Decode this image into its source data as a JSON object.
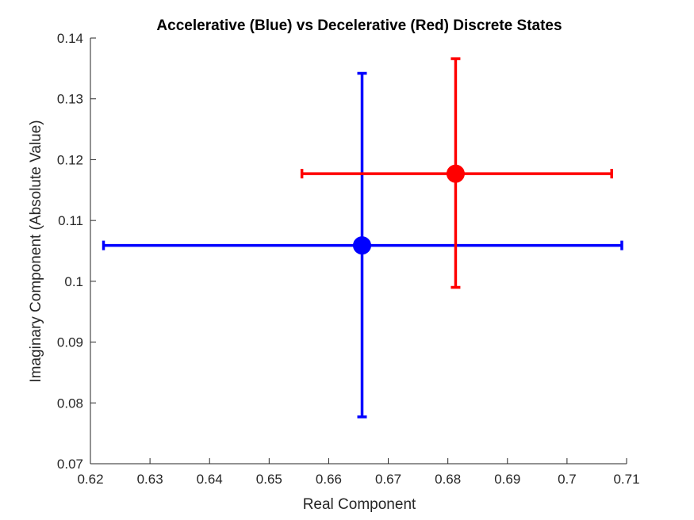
{
  "chart_data": {
    "type": "scatter",
    "title": "Accelerative (Blue) vs Decelerative (Red) Discrete States",
    "xlabel": "Real Component",
    "ylabel": "Imaginary Component (Absolute Value)",
    "xlim": [
      0.62,
      0.71
    ],
    "ylim": [
      0.07,
      0.14
    ],
    "xticks": [
      0.62,
      0.63,
      0.64,
      0.65,
      0.66,
      0.67,
      0.68,
      0.69,
      0.7,
      0.71
    ],
    "yticks": [
      0.07,
      0.08,
      0.09,
      0.1,
      0.11,
      0.12,
      0.13,
      0.14
    ],
    "xtick_labels": [
      "0.62",
      "0.63",
      "0.64",
      "0.65",
      "0.66",
      "0.67",
      "0.68",
      "0.69",
      "0.7",
      "0.71"
    ],
    "ytick_labels": [
      "0.07",
      "0.08",
      "0.09",
      "0.1",
      "0.11",
      "0.12",
      "0.13",
      "0.14"
    ],
    "grid": false,
    "series": [
      {
        "color": "#0000ff",
        "x": 0.6656,
        "y": 0.1059,
        "x_err": [
          0.6222,
          0.7092
        ],
        "y_err": [
          0.0777,
          0.1342
        ]
      },
      {
        "color": "#ff0000",
        "x": 0.6813,
        "y": 0.1177,
        "x_err": [
          0.6555,
          0.7075
        ],
        "y_err": [
          0.099,
          0.1366
        ]
      }
    ]
  }
}
